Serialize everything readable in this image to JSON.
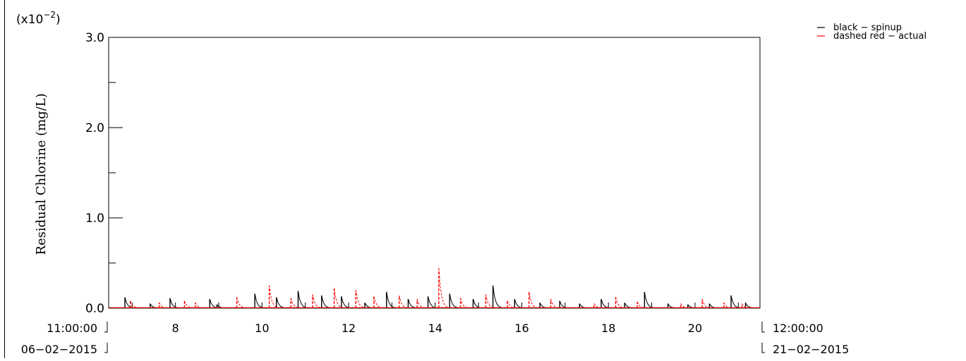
{
  "chart_data": {
    "type": "line",
    "multiplier_label": "(x10",
    "multiplier_exponent": "−2",
    "multiplier_close": ")",
    "ylabel": "Residual Chlorine (mg/L)",
    "ylim": [
      0.0,
      3.0
    ],
    "yticks": [
      "0.0",
      "1.0",
      "2.0",
      "3.0"
    ],
    "xlim": [
      "2015-02-06 11:00:00",
      "2015-02-21 12:00:00"
    ],
    "xticks": [
      "8",
      "10",
      "12",
      "14",
      "16",
      "18",
      "20"
    ],
    "x_start": {
      "time": "11:00:00",
      "date": "06−02−2015"
    },
    "x_end": {
      "time": "12:00:00",
      "date": "21−02−2015"
    },
    "legend": [
      {
        "text": "black − spinup",
        "color": "#000000"
      },
      {
        "text": "dashed red − actual",
        "color": "#ff0000"
      }
    ],
    "legend_placement": "top-right",
    "series": [
      {
        "name": "black − spinup",
        "color": "#000000",
        "style": "solid",
        "peaks": [
          [
            "2015-02-06 20:00",
            0.12
          ],
          [
            "2015-02-07 10:00",
            0.05
          ],
          [
            "2015-02-07 21:00",
            0.11
          ],
          [
            "2015-02-08 19:00",
            0.1
          ],
          [
            "2015-02-08 23:00",
            0.04
          ],
          [
            "2015-02-09 20:00",
            0.16
          ],
          [
            "2015-02-10 08:00",
            0.12
          ],
          [
            "2015-02-10 20:00",
            0.19
          ],
          [
            "2015-02-11 09:00",
            0.14
          ],
          [
            "2015-02-11 20:00",
            0.13
          ],
          [
            "2015-02-12 09:00",
            0.06
          ],
          [
            "2015-02-12 21:00",
            0.18
          ],
          [
            "2015-02-13 09:00",
            0.1
          ],
          [
            "2015-02-13 20:00",
            0.13
          ],
          [
            "2015-02-14 08:00",
            0.16
          ],
          [
            "2015-02-14 21:00",
            0.1
          ],
          [
            "2015-02-15 08:00",
            0.25
          ],
          [
            "2015-02-15 20:00",
            0.1
          ],
          [
            "2015-02-16 10:00",
            0.06
          ],
          [
            "2015-02-16 21:00",
            0.08
          ],
          [
            "2015-02-17 08:00",
            0.05
          ],
          [
            "2015-02-17 20:00",
            0.1
          ],
          [
            "2015-02-18 09:00",
            0.06
          ],
          [
            "2015-02-18 20:00",
            0.18
          ],
          [
            "2015-02-19 09:00",
            0.05
          ],
          [
            "2015-02-19 20:00",
            0.04
          ],
          [
            "2015-02-20 08:00",
            0.05
          ],
          [
            "2015-02-20 20:00",
            0.14
          ],
          [
            "2015-02-21 04:00",
            0.06
          ]
        ]
      },
      {
        "name": "dashed red − actual",
        "color": "#ff0000",
        "style": "dashed",
        "peaks": [
          [
            "2015-02-06 23:00",
            0.08
          ],
          [
            "2015-02-07 15:00",
            0.06
          ],
          [
            "2015-02-08 05:00",
            0.08
          ],
          [
            "2015-02-08 11:00",
            0.06
          ],
          [
            "2015-02-09 10:00",
            0.12
          ],
          [
            "2015-02-10 04:00",
            0.25
          ],
          [
            "2015-02-10 16:00",
            0.11
          ],
          [
            "2015-02-11 04:00",
            0.15
          ],
          [
            "2015-02-11 16:00",
            0.22
          ],
          [
            "2015-02-12 04:00",
            0.2
          ],
          [
            "2015-02-12 14:00",
            0.13
          ],
          [
            "2015-02-13 04:00",
            0.14
          ],
          [
            "2015-02-13 14:00",
            0.1
          ],
          [
            "2015-02-14 02:00",
            0.44
          ],
          [
            "2015-02-14 14:00",
            0.11
          ],
          [
            "2015-02-15 04:00",
            0.15
          ],
          [
            "2015-02-15 16:00",
            0.08
          ],
          [
            "2015-02-16 04:00",
            0.18
          ],
          [
            "2015-02-16 16:00",
            0.1
          ],
          [
            "2015-02-17 16:00",
            0.05
          ],
          [
            "2015-02-18 04:00",
            0.12
          ],
          [
            "2015-02-18 16:00",
            0.07
          ],
          [
            "2015-02-19 16:00",
            0.05
          ],
          [
            "2015-02-20 04:00",
            0.1
          ],
          [
            "2015-02-20 16:00",
            0.06
          ],
          [
            "2015-02-21 02:00",
            0.05
          ]
        ]
      }
    ]
  }
}
